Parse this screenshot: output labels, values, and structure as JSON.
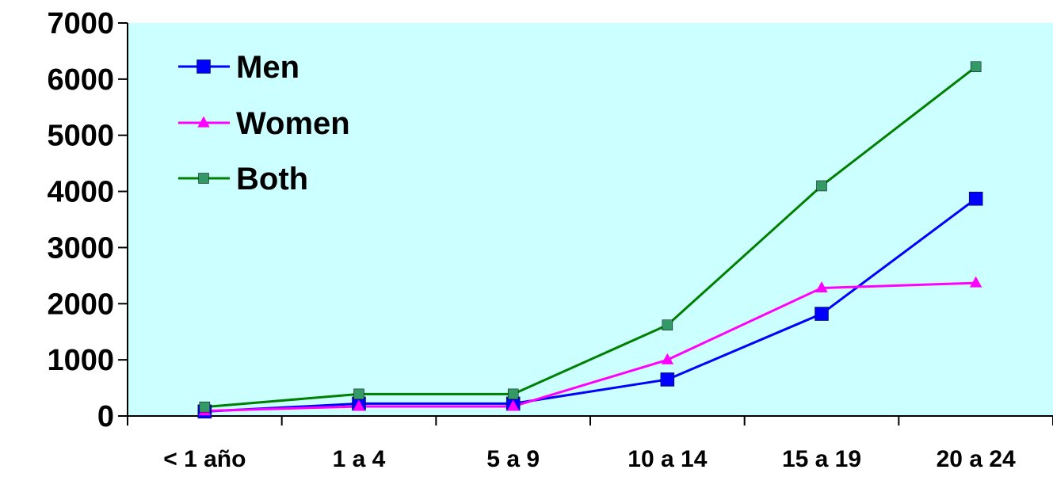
{
  "chart_data": {
    "type": "line",
    "categories": [
      "< 1 año",
      "1 a 4",
      "5 a 9",
      "10 a 14",
      "15 a 19",
      "20 a 24"
    ],
    "ylim": [
      0,
      7000
    ],
    "yticks": [
      "0",
      "1000",
      "2000",
      "3000",
      "4000",
      "5000",
      "6000",
      "7000"
    ],
    "grid": false,
    "legend_position": "top-left",
    "plot_background": "#ccffff",
    "series": [
      {
        "name": "Men",
        "color": "#0000ff",
        "marker": "square",
        "values": [
          80,
          220,
          220,
          650,
          1820,
          3870
        ]
      },
      {
        "name": "Women",
        "color": "#ff00ff",
        "marker": "triangle",
        "values": [
          90,
          170,
          170,
          1000,
          2280,
          2370
        ]
      },
      {
        "name": "Both",
        "color": "#008000",
        "marker_color": "#339966",
        "marker": "square",
        "values": [
          160,
          390,
          390,
          1620,
          4100,
          6220
        ]
      }
    ]
  }
}
